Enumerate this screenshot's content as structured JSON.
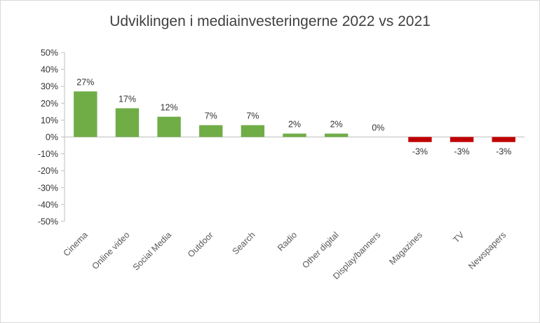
{
  "chart_data": {
    "type": "bar",
    "title": "Udviklingen i mediainvesteringerne 2022 vs 2021",
    "categories": [
      "Cinema",
      "Online video",
      "Social Media",
      "Outdoor",
      "Search",
      "Radio",
      "Other digital",
      "Display/banners",
      "Magazines",
      "TV",
      "Newspapers"
    ],
    "values": [
      27,
      17,
      12,
      7,
      7,
      2,
      2,
      0,
      -3,
      -3,
      -3
    ],
    "data_labels": [
      "27%",
      "17%",
      "12%",
      "7%",
      "7%",
      "2%",
      "2%",
      "0%",
      "-3%",
      "-3%",
      "-3%"
    ],
    "yticks": [
      "50%",
      "40%",
      "30%",
      "20%",
      "10%",
      "0%",
      "-10%",
      "-20%",
      "-30%",
      "-40%",
      "-50%"
    ],
    "ylim": [
      -50,
      50
    ],
    "xlabel": "",
    "ylabel": "",
    "grid": false,
    "colors": {
      "positive": "#70ad47",
      "negative": "#c00000",
      "axis": "#bfbfbf"
    }
  }
}
